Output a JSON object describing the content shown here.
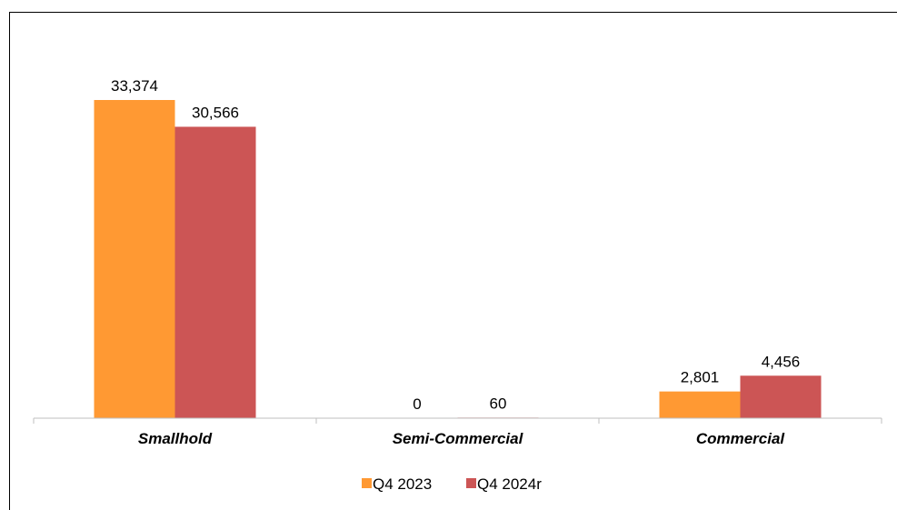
{
  "chart_data": {
    "type": "bar",
    "categories": [
      "Smallhold",
      "Semi-Commercial",
      "Commercial"
    ],
    "series": [
      {
        "name": "Q4 2023",
        "color": "#FF9933",
        "values": [
          33374,
          0,
          2801
        ],
        "labels": [
          "33,374",
          "0",
          "2,801"
        ]
      },
      {
        "name": "Q4 2024r",
        "color": "#CC5555",
        "values": [
          30566,
          60,
          4456
        ],
        "labels": [
          "30,566",
          "60",
          "4,456"
        ]
      }
    ],
    "title": "",
    "xlabel": "",
    "ylabel": "",
    "ylim": [
      0,
      40000
    ],
    "grid": false,
    "legend": "bottom-center"
  }
}
